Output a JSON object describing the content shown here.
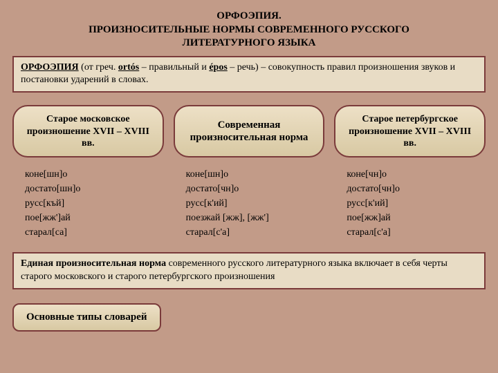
{
  "title_line1": "ОРФОЭПИЯ.",
  "title_line2": "ПРОИЗНОСИТЕЛЬНЫЕ НОРМЫ СОВРЕМЕННОГО РУССКОГО",
  "title_line3": "ЛИТЕРАТУРНОГО ЯЗЫКА",
  "definition": {
    "term": "ОРФОЭПИЯ",
    "etym_prefix": " (от греч. ",
    "ortos": "ortós",
    "mid": " – правильный и ",
    "epos": "épos",
    "etym_suffix": " – речь) – совокупность правил произношения звуков и постановки ударений в словах."
  },
  "columns": [
    {
      "head": "Старое московское произношение XVII – XVIII вв.",
      "ex": [
        "коне[шн]о",
        "достато[шн]о",
        "русс[къй]",
        "пое[жж']ай",
        "старал[са]"
      ]
    },
    {
      "head": "Современная произносительная норма",
      "ex": [
        "коне[шн]о",
        "достато[чн]о",
        "русс[к'ий]",
        "поезжай [жж], [жж']",
        "старал[с'а]"
      ]
    },
    {
      "head": "Старое петербургское произношение XVII – XVIII вв.",
      "ex": [
        "коне[чн]о",
        "достато[чн]о",
        "русс[к'ий]",
        "пое[жж]ай",
        "старал[с'а]"
      ]
    }
  ],
  "norm": {
    "bold": "Единая произносительная норма",
    "rest": " современного русского литературного языка включает в себя черты старого московского и старого петербургского произношения"
  },
  "button": "Основные типы словарей",
  "styling": {
    "background_color": "#c29b88",
    "box_fill": "#e8dcc5",
    "box_border": "#7a3a3a",
    "pill_gradient_top": "#ede0c6",
    "pill_gradient_bottom": "#d8c9a3",
    "title_fontsize": 15,
    "body_fontsize": 14,
    "font_family": "Georgia/serif"
  }
}
